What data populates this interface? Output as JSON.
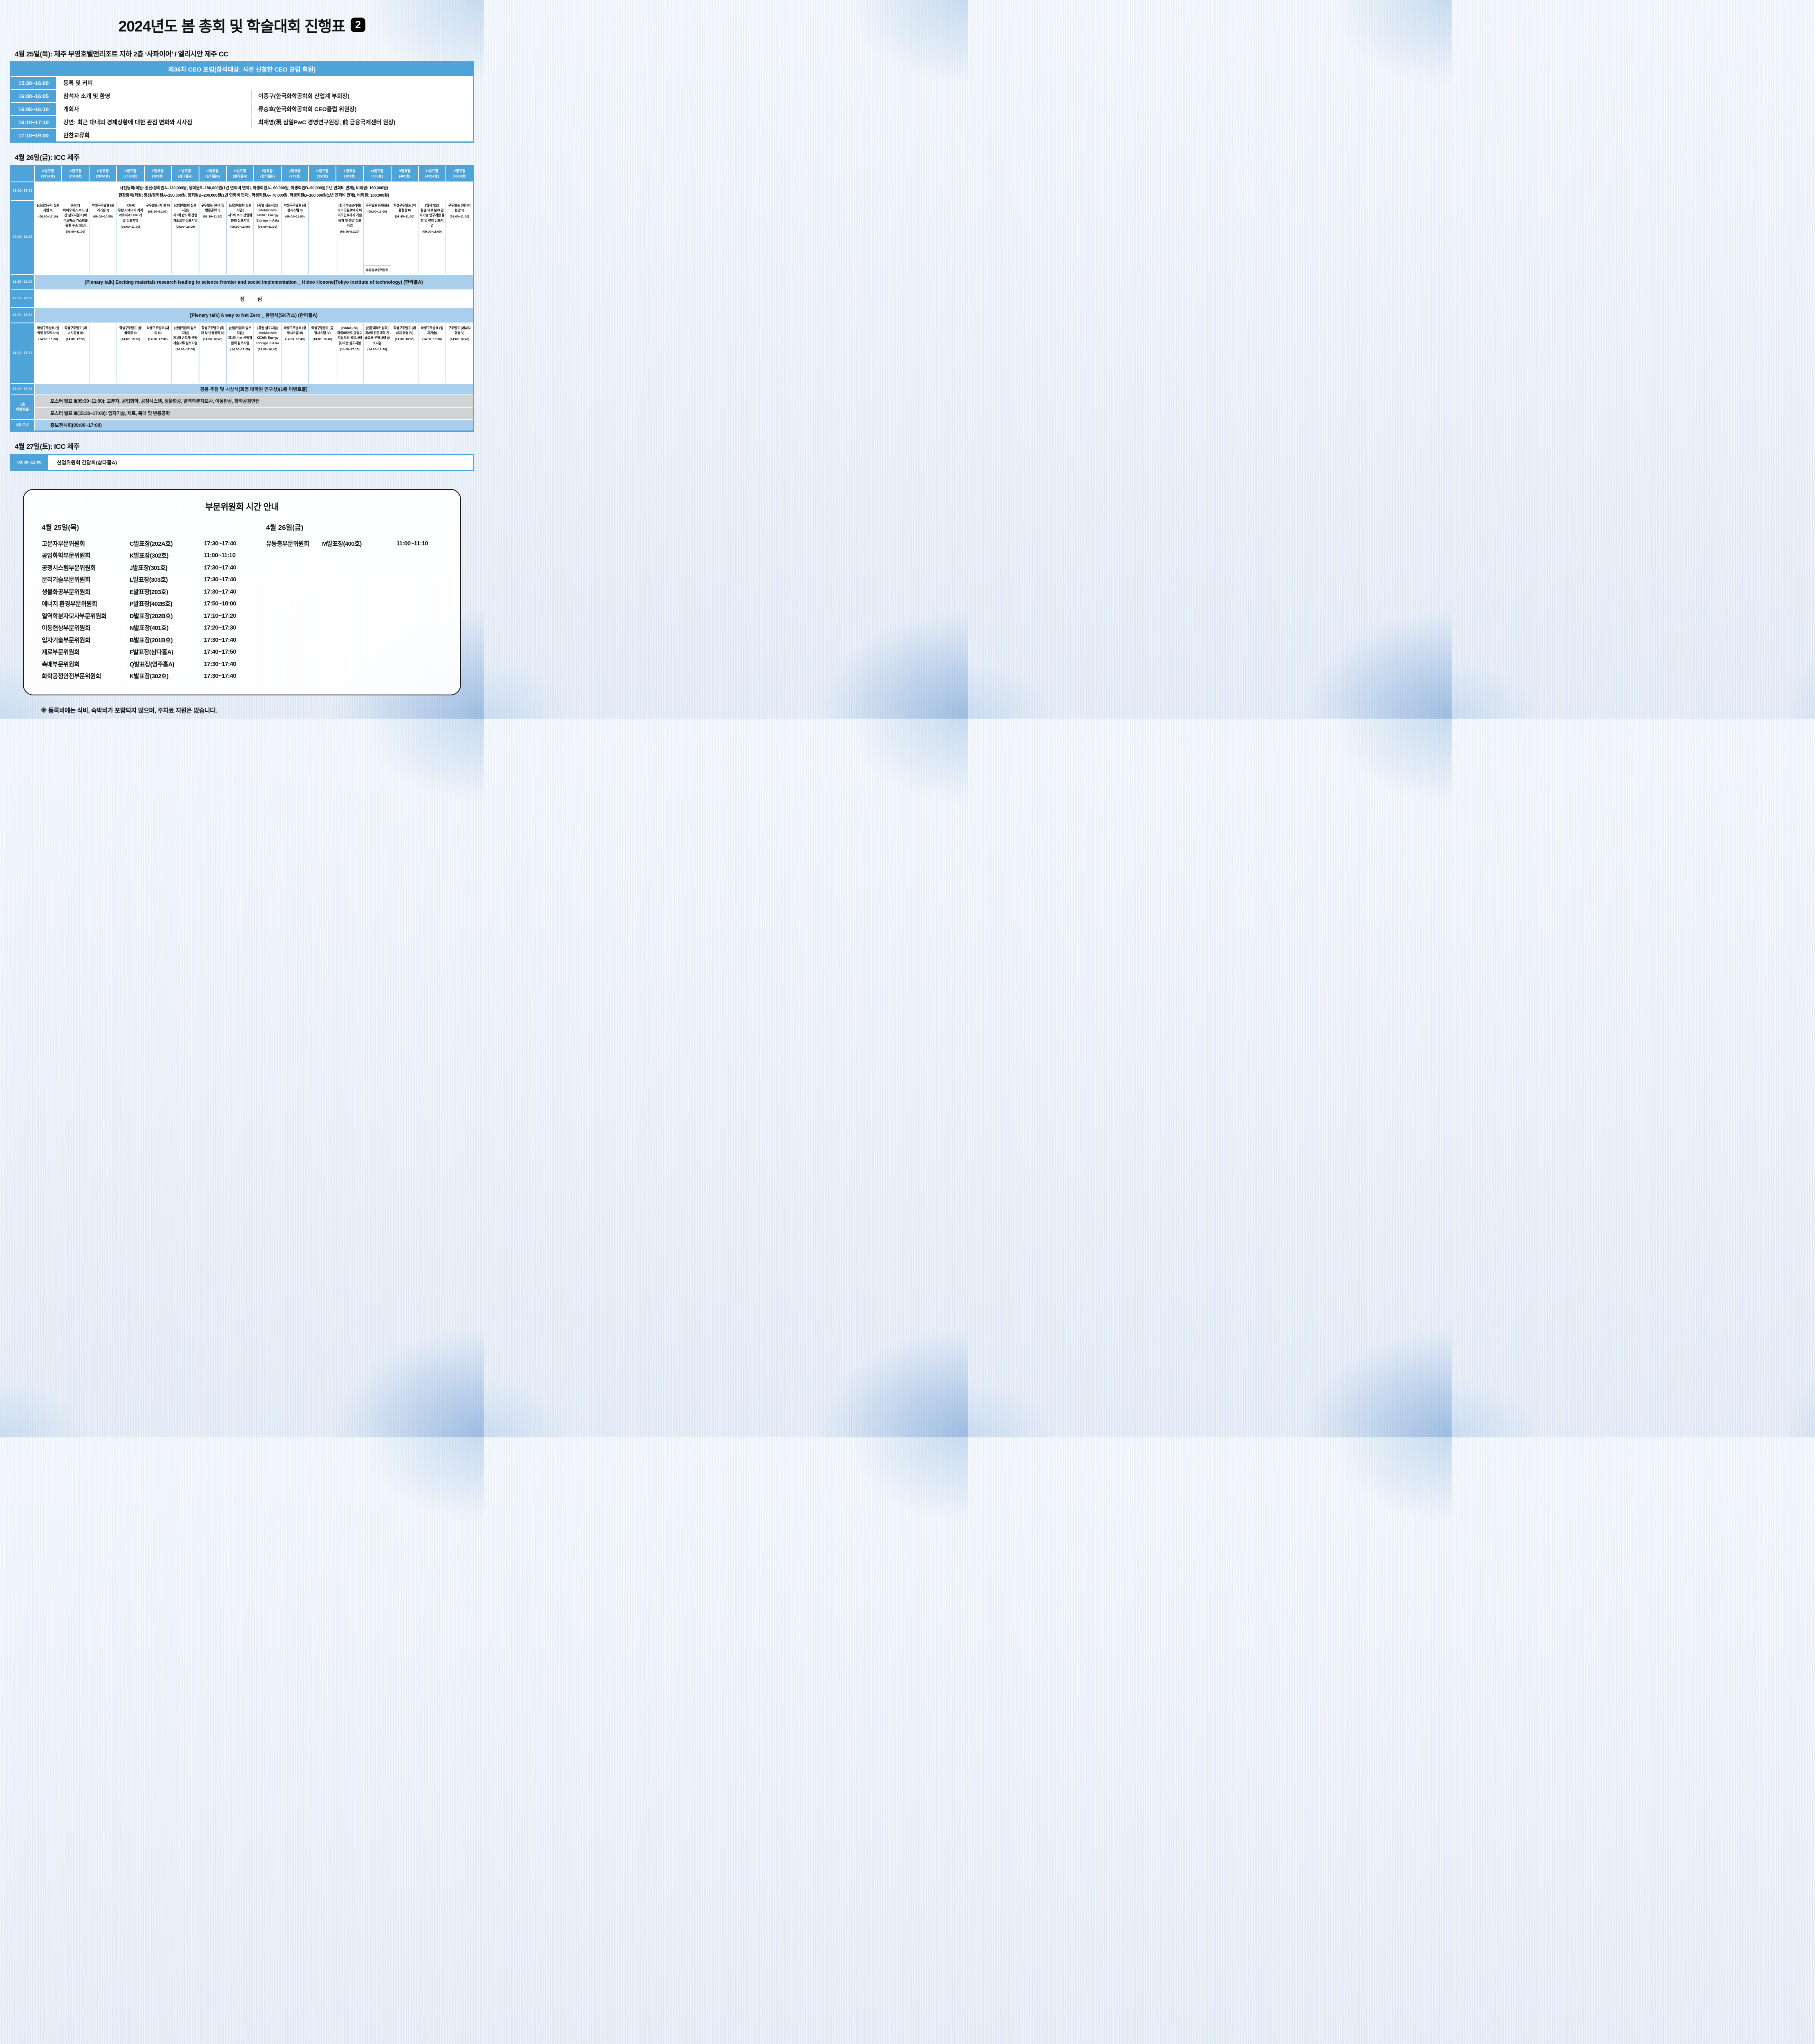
{
  "page": {
    "title": "2024년도 봄 총회 및 학술대회 진행표",
    "title_badge": "2",
    "footnote": "※ 등록비에는 식비, 숙박비가 포함되지 않으며, 주차료 지원은 없습니다."
  },
  "day1": {
    "heading": "4월 25일(목): 제주 부영호텔앤리조트 지하 2층 ‘사파이어’ / 엘리시안 제주 CC",
    "forum_title": "제36차 CEO 포럼(참석대상: 사전 신청한 CEO 클럽 회원)",
    "rows": [
      {
        "time": "15:30~16:00",
        "desc": "등록 및 커피",
        "speaker": ""
      },
      {
        "time": "16:00~16:05",
        "desc": "참석자 소개 및 환영",
        "speaker": "이종구(한국화학공학회 산업계 부회장)"
      },
      {
        "time": "16:05~16:10",
        "desc": "개회사",
        "speaker": "류승호(한국화학공학회 CEO클럽 위원장)"
      },
      {
        "time": "16:10~17:10",
        "desc": "강연: 최근 대내외 경제상황에 대한 관점 변화와 시사점",
        "speaker": "최재영(現 삼일PwC 경영연구원장, 煎 금융국제센터 원장)"
      },
      {
        "time": "17:10~19:00",
        "desc": "만찬교류회",
        "speaker": ""
      }
    ]
  },
  "day2": {
    "heading": "4월 26일(금): ICC 제주",
    "rooms": [
      {
        "n": "A발표장",
        "r": "(201A호)"
      },
      {
        "n": "B발표장",
        "r": "(201B호)"
      },
      {
        "n": "C발표장",
        "r": "(202A호)"
      },
      {
        "n": "D발표장",
        "r": "(202B호)"
      },
      {
        "n": "E발표장",
        "r": "(203호)"
      },
      {
        "n": "F발표장",
        "r": "(삼다홀A)"
      },
      {
        "n": "G발표장",
        "r": "(삼다홀B)"
      },
      {
        "n": "H발표장",
        "r": "(한라홀A)"
      },
      {
        "n": "I발표장",
        "r": "(한라홀B)"
      },
      {
        "n": "J발표장",
        "r": "(301호)"
      },
      {
        "n": "K발표장",
        "r": "(302호)"
      },
      {
        "n": "L발표장",
        "r": "(303호)"
      },
      {
        "n": "M발표장",
        "r": "(400호)"
      },
      {
        "n": "N발표장",
        "r": "(401호)"
      },
      {
        "n": "O발표장",
        "r": "(402A호)"
      },
      {
        "n": "P발표장",
        "r": "(402B호)"
      }
    ],
    "registration": {
      "time": "08:00~17:00",
      "line1": "사전등록(회원: 종신/정회원A–130,000원, 정회원B–180,000원(1년 연회비 면제), 학생회원A– 60,000원, 학생회원B–90,000원(1년 연회비 면제), 비회원: 160,000원)",
      "line2": "현장등록(회원: 종신/정회원A–150,000원, 정회원B–200,000원(1년 연회비 면제), 학생회원A– 70,000원, 학생회원B–100,000원(1년 연회비 면제), 비회원: 180,000원)"
    },
    "morning": {
      "time": "09:00~11:00",
      "cells": [
        {
          "head": "[신진연구자 심포지엄 III]",
          "body": "",
          "time": "(09:00~11:10)",
          "sub": ""
        },
        {
          "head": "[ERC]",
          "body": "바이오매스 수소 생산 심포지엄 II (바이오매스 가스화를 통한 수소 생산)",
          "time": "(09:00~11:00)",
          "sub": ""
        },
        {
          "head": "",
          "body": "학생구두발표 (분리기술 II)",
          "time": "(09:00~10:55)",
          "sub": ""
        },
        {
          "head": "[KIER]",
          "body": "무탄소 에너지 캐리어로서의 CCU 기술 심포지엄",
          "time": "(09:00~11:00)",
          "sub": ""
        },
        {
          "head": "",
          "body": "구두발표 (재 료 II)",
          "time": "(08:50~11:00)",
          "sub": ""
        },
        {
          "head": "[산업위원회 심포지엄]",
          "body": "제1회 반도체 산업 기술교류 심포지엄",
          "time": "(09:00~11:00)",
          "sub": ""
        },
        {
          "head": "",
          "body": "구두발표 (촉매 및 반응공학 II)",
          "time": "(08:30~11:00)",
          "sub": ""
        },
        {
          "head": "[산업위원회 심포지엄]",
          "body": "제1회 수소 산업위원회 심포지엄",
          "time": "(09:00~11:00)",
          "sub": ""
        },
        {
          "head": "[특별 심포지엄]",
          "body": "InfoMat with KIChE: Energy Storage in Asia",
          "time": "(09:00~11:00)",
          "sub": ""
        },
        {
          "head": "",
          "body": "학생구두발표 (공정시스템 II)",
          "time": "(09:00~11:00)",
          "sub": ""
        },
        {
          "head": "",
          "body": "",
          "time": "",
          "sub": ""
        },
        {
          "head": "[한국석유관리원]",
          "body": "바이오원료에서 바이오연료까지 기술동향 및 전망 심포지엄",
          "time": "(08:50~11:20)",
          "sub": ""
        },
        {
          "head": "",
          "body": "구두발표 (유동층)",
          "time": "(09:00~11:00)",
          "sub": "유동층부문위원회"
        },
        {
          "head": "",
          "body": "학생구두발표 (이동현상 II)",
          "time": "(08:45~11:00)",
          "sub": ""
        },
        {
          "head": "[입자기술]",
          "body": "환경·의료 분야 입자기술 연구개발 동향 및 전망 심포지엄",
          "time": "(09:00~11:00)",
          "sub": ""
        },
        {
          "head": "",
          "body": "구두발표 (에너지 환경 II)",
          "time": "(09:00~11:00)",
          "sub": ""
        }
      ]
    },
    "plenary1": {
      "time": "11:10~12:00",
      "text": "[Plenary talk] Exciting materials research leading to science frontier and social implementation _ Hideo Hosono(Tokyo institute of technology) (한라홀A)"
    },
    "lunch": {
      "time": "12:00~13:00",
      "text": "점 심"
    },
    "plenary2": {
      "time": "13:00~13:50",
      "text": "[Plenary talk] A way to Net Zero _ 윤병석(SK가스) (한라홀A)"
    },
    "afternoon": {
      "time": "14:00~17:00",
      "cells": [
        {
          "head": "",
          "body": "학생구두발표 (열역학 분자모사 II)",
          "time": "(14:00~15:00)",
          "sub": ""
        },
        {
          "head": "",
          "body": "학생구두발표 (에너지환경 III)",
          "time": "(14:00~17:00)",
          "sub": ""
        },
        {
          "head": "",
          "body": "",
          "time": "",
          "sub": ""
        },
        {
          "head": "",
          "body": "학생구두발표 (생물화공 II)",
          "time": "(14:00~15:00)",
          "sub": ""
        },
        {
          "head": "",
          "body": "학생구두발표 (재 료 III)",
          "time": "(14:00~17:00)",
          "sub": ""
        },
        {
          "head": "[산업위원회 심포지엄]",
          "body": "제1회 반도체 산업 기술교류 심포지엄",
          "time": "(14:00~17:00)",
          "sub": ""
        },
        {
          "head": "",
          "body": "학생구두발표 (촉매 및 반응공학 III)",
          "time": "(14:00~16:40)",
          "sub": ""
        },
        {
          "head": "[산업위원회 심포지엄]",
          "body": "제1회 수소 산업위원회 심포지엄",
          "time": "(14:00~17:05)",
          "sub": ""
        },
        {
          "head": "[특별 심포지엄]",
          "body": "InfoMat with KIChE: Energy Storage in Asia",
          "time": "(14:00~16:45)",
          "sub": ""
        },
        {
          "head": "",
          "body": "학생구두발표 (공정시스템 III)",
          "time": "(14:00~16:40)",
          "sub": ""
        },
        {
          "head": "",
          "body": "학생구두발표 (공정시스템 IV)",
          "time": "(14:00~16:40)",
          "sub": ""
        },
        {
          "head": "[SIMACRO]",
          "body": "화학/바이오 공정디지털트윈 응용사례 및 비전 심포지엄",
          "time": "(14:00~17:10)",
          "sub": ""
        },
        {
          "head": "[전문대학위원회]",
          "body": "제8회 전문대학 기술교육 운영사례 심포지엄",
          "time": "(14:00~16:30)",
          "sub": ""
        },
        {
          "head": "",
          "body": "학생구두발표 (에너지 환경 IV)",
          "time": "(14:00~16:50)",
          "sub": ""
        },
        {
          "head": "",
          "body": "학생구두발표 (입자기술)",
          "time": "(14:00~15:30)",
          "sub": ""
        },
        {
          "head": "",
          "body": "구두발표 (에너지 환경 V)",
          "time": "(14:00~16:40)",
          "sub": ""
        }
      ]
    },
    "raffle": {
      "time": "17:00~17:30",
      "text": "경품 추첨 및 시상식(회명 대학원 연구상)(1층 이벤트홀)"
    },
    "event_hall": {
      "label": "1층\n이벤트홀",
      "rows": [
        "포스터 발표 II(09:30~11:00): 고분자, 공업화학, 공정시스템, 생물화공, 열역학분자모사, 이동현상, 화학공정안전",
        "포스터 발표 III(15:30~17:00): 입자기술, 재료, 촉매 및 반응공학"
      ]
    },
    "lobby": {
      "label": "3층 로비",
      "text": "홍보전시회(09:00~17:00)"
    }
  },
  "day3": {
    "heading": "4월 27일(토): ICC 제주",
    "row": {
      "time": "09:30~11:00",
      "desc": "산업위원회 간담회(삼다홀A)"
    }
  },
  "committee": {
    "title": "부문위원회 시간 안내",
    "left_heading": "4월 25일(목)",
    "right_heading": "4월 26일(금)",
    "left": [
      {
        "name": "고분자부문위원회",
        "venue": "C발표장(202A호)",
        "time": "17:30~17:40"
      },
      {
        "name": "공업화학부문위원회",
        "venue": "K발표장(302호)",
        "time": "11:00~11:10"
      },
      {
        "name": "공정시스템부문위원회",
        "venue": "J발표장(301호)",
        "time": "17:30~17:40"
      },
      {
        "name": "분리기술부문위원회",
        "venue": "L발표장(303호)",
        "time": "17:30~17:40"
      },
      {
        "name": "생물화공부문위원회",
        "venue": "E발표장(203호)",
        "time": "17:30~17:40"
      },
      {
        "name": "에너지 환경부문위원회",
        "venue": "P발표장(402B호)",
        "time": "17:50~18:00"
      },
      {
        "name": "열역학분자모사부문위원회",
        "venue": "D발표장(202B호)",
        "time": "17:10~17:20"
      },
      {
        "name": "이동현상부문위원회",
        "venue": "N발표장(401호)",
        "time": "17:20~17:30"
      },
      {
        "name": "입자기술부문위원회",
        "venue": "B발표장(201B호)",
        "time": "17:30~17:40"
      },
      {
        "name": "재료부문위원회",
        "venue": "F발표장(삼다홀A)",
        "time": "17:40~17:50"
      },
      {
        "name": "촉매부문위원회",
        "venue": "Q발표장(영주홀A)",
        "time": "17:30~17:40"
      },
      {
        "name": "화학공정안전부문위원회",
        "venue": "K발표장(302호)",
        "time": "17:30~17:40"
      }
    ],
    "right": [
      {
        "name": "유동층부문위원회",
        "venue": "M발표장(400호)",
        "time": "11:00~11:10"
      }
    ]
  }
}
